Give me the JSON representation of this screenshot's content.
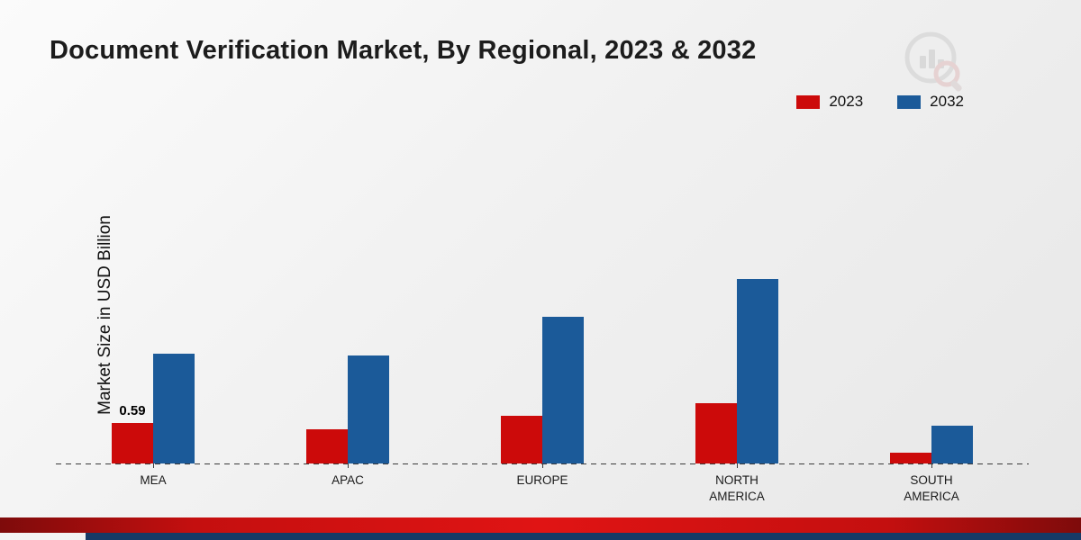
{
  "title": "Document Verification Market, By Regional, 2023 & 2032",
  "ylabel": "Market Size in USD Billion",
  "chart_data": {
    "type": "bar",
    "title": "Document Verification Market, By Regional, 2023 & 2032",
    "xlabel": "",
    "ylabel": "Market Size in USD Billion",
    "categories": [
      "MEA",
      "APAC",
      "EUROPE",
      "NORTH AMERICA",
      "SOUTH AMERICA"
    ],
    "series": [
      {
        "name": "2023",
        "color": "#cc0a0a",
        "values": [
          0.59,
          0.5,
          0.7,
          0.88,
          0.16
        ]
      },
      {
        "name": "2032",
        "color": "#1b5a99",
        "values": [
          1.6,
          1.58,
          2.15,
          2.7,
          0.55
        ]
      }
    ],
    "data_labels": [
      {
        "category": "MEA",
        "series": "2023",
        "text": "0.59"
      }
    ],
    "ylim": [
      0,
      3
    ],
    "grid": false,
    "baseline_style": "dashed",
    "legend_position": "top-right",
    "legend_entries": [
      "2023",
      "2032"
    ]
  },
  "branding": {
    "logo_name": "bar-chart-magnifier-logo"
  },
  "footer": {
    "red_strip_color": "#d01010",
    "blue_strip_color": "#163a66"
  }
}
